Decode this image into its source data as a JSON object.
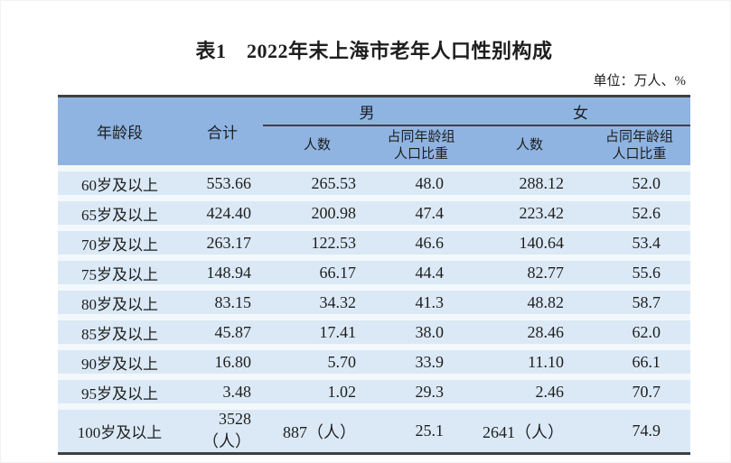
{
  "page": {
    "title": "表1　2022年末上海市老年人口性别构成",
    "unit_note": "单位：万人、%"
  },
  "colors": {
    "header_bg": "#8FB4E2",
    "row_bg": "#DBE9F6",
    "row_gap": "#F3F8FC",
    "border_dark": "#404040",
    "text": "#1E1E1E",
    "page_bg": "#FFFFFF"
  },
  "table": {
    "header": {
      "age": "年龄段",
      "total": "合计",
      "male": "男",
      "female": "女",
      "count": "人数",
      "share_line1": "占同年龄组",
      "share_line2": "人口比重"
    },
    "rows": [
      [
        "60岁及以上",
        "553.66",
        "265.53",
        "48.0",
        "288.12",
        "52.0"
      ],
      [
        "65岁及以上",
        "424.40",
        "200.98",
        "47.4",
        "223.42",
        "52.6"
      ],
      [
        "70岁及以上",
        "263.17",
        "122.53",
        "46.6",
        "140.64",
        "53.4"
      ],
      [
        "75岁及以上",
        "148.94",
        "66.17",
        "44.4",
        "82.77",
        "55.6"
      ],
      [
        "80岁及以上",
        "83.15",
        "34.32",
        "41.3",
        "48.82",
        "58.7"
      ],
      [
        "85岁及以上",
        "45.87",
        "17.41",
        "38.0",
        "28.46",
        "62.0"
      ],
      [
        "90岁及以上",
        "16.80",
        "5.70",
        "33.9",
        "11.10",
        "66.1"
      ],
      [
        "95岁及以上",
        "3.48",
        "1.02",
        "29.3",
        "2.46",
        "70.7"
      ],
      [
        "100岁及以上",
        "3528（人）",
        "887（人）",
        "25.1",
        "2641（人）",
        "74.9"
      ]
    ]
  }
}
